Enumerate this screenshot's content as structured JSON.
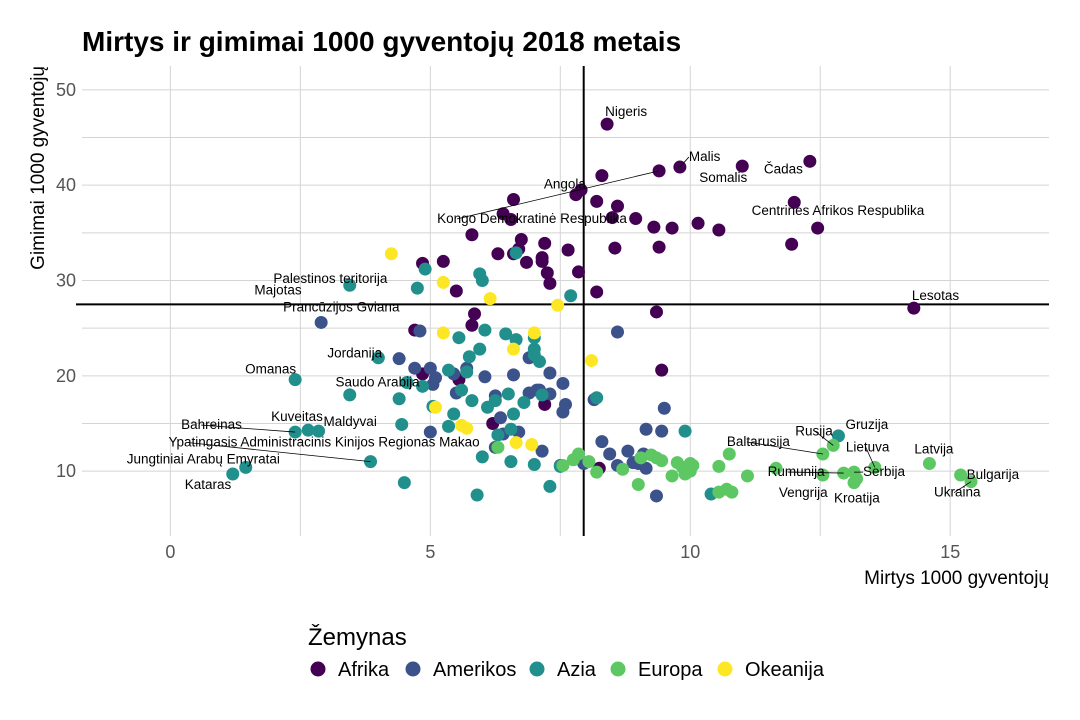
{
  "chart_data": {
    "type": "scatter",
    "title": "Mirtys ir gimimai 1000 gyventojų 2018 metais",
    "xlabel": "Mirtys 1000 gyventojų",
    "ylabel": "Gimimai 1000 gyventojų",
    "xlim": [
      -1.7,
      16.9
    ],
    "ylim": [
      3.2,
      52.5
    ],
    "xticks": [
      0,
      5,
      10,
      15
    ],
    "yticks": [
      10,
      20,
      30,
      40,
      50
    ],
    "grid": true,
    "vline_x": 7.95,
    "hline_y": 27.5,
    "legend": {
      "title": "Žemynas",
      "position": "bottom"
    },
    "colors": {
      "Afrika": "#440154",
      "Amerikos": "#3b528b",
      "Azia": "#21908c",
      "Europa": "#5dc863",
      "Okeanija": "#fde725"
    },
    "series": [
      {
        "name": "Afrika",
        "points": [
          [
            8.4,
            46.4
          ],
          [
            8.3,
            41
          ],
          [
            11,
            42
          ],
          [
            12.3,
            42.5
          ],
          [
            9.8,
            41.9
          ],
          [
            9.4,
            41.5
          ],
          [
            7.9,
            39.5
          ],
          [
            7.8,
            39
          ],
          [
            8.2,
            38.3
          ],
          [
            8.6,
            37.8
          ],
          [
            12,
            38.2
          ],
          [
            6.6,
            38.5
          ],
          [
            6.4,
            37
          ],
          [
            6.55,
            36.4
          ],
          [
            8.5,
            36.6
          ],
          [
            8.95,
            36.5
          ],
          [
            9.3,
            35.6
          ],
          [
            9.65,
            35.5
          ],
          [
            10.15,
            36
          ],
          [
            10.55,
            35.3
          ],
          [
            12.45,
            35.5
          ],
          [
            5.8,
            34.8
          ],
          [
            6.75,
            34.3
          ],
          [
            7.2,
            33.9
          ],
          [
            11.95,
            33.8
          ],
          [
            9.4,
            33.5
          ],
          [
            8.55,
            33.4
          ],
          [
            7.65,
            33.2
          ],
          [
            6.7,
            33.3
          ],
          [
            6.6,
            32.8
          ],
          [
            7.15,
            32.4
          ],
          [
            6.3,
            32.8
          ],
          [
            4.85,
            31.8
          ],
          [
            5.25,
            32
          ],
          [
            6.85,
            31.9
          ],
          [
            7.15,
            32
          ],
          [
            7.25,
            30.8
          ],
          [
            7.85,
            30.9
          ],
          [
            7.3,
            29.7
          ],
          [
            8.2,
            28.8
          ],
          [
            5.5,
            28.9
          ],
          [
            14.3,
            27.1
          ],
          [
            9.35,
            26.7
          ],
          [
            5.85,
            26.5
          ],
          [
            5.8,
            25.3
          ],
          [
            4.7,
            24.8
          ],
          [
            9.45,
            20.6
          ],
          [
            4.85,
            20.2
          ],
          [
            5.55,
            19.6
          ],
          [
            7.2,
            17
          ],
          [
            6.2,
            15
          ],
          [
            8.25,
            10.3
          ]
        ]
      },
      {
        "name": "Amerikos",
        "points": [
          [
            2.9,
            25.6
          ],
          [
            4.8,
            24.7
          ],
          [
            8.6,
            24.6
          ],
          [
            5.7,
            20.8
          ],
          [
            5.45,
            20.2
          ],
          [
            4.4,
            21.8
          ],
          [
            4.7,
            20.8
          ],
          [
            5,
            20.8
          ],
          [
            5.1,
            19.8
          ],
          [
            6.05,
            19.9
          ],
          [
            6.6,
            20.1
          ],
          [
            6.9,
            21.9
          ],
          [
            7.3,
            20.3
          ],
          [
            7.55,
            19.2
          ],
          [
            7.1,
            18.5
          ],
          [
            6.9,
            18.2
          ],
          [
            7.05,
            18.5
          ],
          [
            7.3,
            18.1
          ],
          [
            5.5,
            18.2
          ],
          [
            5.05,
            19.1
          ],
          [
            6.25,
            17.9
          ],
          [
            7.6,
            17
          ],
          [
            6.35,
            15.6
          ],
          [
            7.55,
            16.2
          ],
          [
            8.15,
            17.5
          ],
          [
            9.5,
            16.6
          ],
          [
            9.15,
            14.4
          ],
          [
            9.45,
            14.2
          ],
          [
            6.4,
            13.9
          ],
          [
            6.7,
            14.1
          ],
          [
            5.0,
            14.1
          ],
          [
            8.3,
            13.1
          ],
          [
            8.45,
            11.8
          ],
          [
            8.8,
            12.1
          ],
          [
            9.1,
            11.8
          ],
          [
            8.9,
            10.9
          ],
          [
            9.0,
            10.8
          ],
          [
            9.15,
            10.3
          ],
          [
            8.6,
            10.6
          ],
          [
            7.95,
            10.8
          ],
          [
            7.5,
            10.6
          ],
          [
            6.25,
            12.5
          ],
          [
            7.15,
            12.1
          ],
          [
            9.35,
            7.4
          ]
        ]
      },
      {
        "name": "Azia",
        "points": [
          [
            4.9,
            31.2
          ],
          [
            3.45,
            29.5
          ],
          [
            4.75,
            29.2
          ],
          [
            5.95,
            30.7
          ],
          [
            6.0,
            30.0
          ],
          [
            7.7,
            28.4
          ],
          [
            6.65,
            32.9
          ],
          [
            5.55,
            24.0
          ],
          [
            5.95,
            22.8
          ],
          [
            6.05,
            24.8
          ],
          [
            6.45,
            24.4
          ],
          [
            6.65,
            23.8
          ],
          [
            7.0,
            24.0
          ],
          [
            7.0,
            22.8
          ],
          [
            7.0,
            22.2
          ],
          [
            7.1,
            21.5
          ],
          [
            5.75,
            22.0
          ],
          [
            5.35,
            20.6
          ],
          [
            5.7,
            20.4
          ],
          [
            4.0,
            21.9
          ],
          [
            2.4,
            19.6
          ],
          [
            3.45,
            18.0
          ],
          [
            4.55,
            19.3
          ],
          [
            4.85,
            18.9
          ],
          [
            4.4,
            17.6
          ],
          [
            5.6,
            18.5
          ],
          [
            5.8,
            17.4
          ],
          [
            6.25,
            17.4
          ],
          [
            6.5,
            18.1
          ],
          [
            6.8,
            17.2
          ],
          [
            7.15,
            18.0
          ],
          [
            8.2,
            17.7
          ],
          [
            5.05,
            16.8
          ],
          [
            5.45,
            16.0
          ],
          [
            6.1,
            16.7
          ],
          [
            6.6,
            16.0
          ],
          [
            4.45,
            14.9
          ],
          [
            5.35,
            14.7
          ],
          [
            6.55,
            14.4
          ],
          [
            6.3,
            13.8
          ],
          [
            2.4,
            14.1
          ],
          [
            2.65,
            14.3
          ],
          [
            2.85,
            14.2
          ],
          [
            3.85,
            11.0
          ],
          [
            1.45,
            10.4
          ],
          [
            1.2,
            9.7
          ],
          [
            4.5,
            8.8
          ],
          [
            5.9,
            7.5
          ],
          [
            7.3,
            8.4
          ],
          [
            6.55,
            11.0
          ],
          [
            7.0,
            10.7
          ],
          [
            7.5,
            10.5
          ],
          [
            9.9,
            14.2
          ],
          [
            10.4,
            7.6
          ],
          [
            12.85,
            13.7
          ],
          [
            6.0,
            11.5
          ]
        ]
      },
      {
        "name": "Europa",
        "points": [
          [
            14.6,
            10.8
          ],
          [
            15.2,
            9.6
          ],
          [
            15.4,
            8.9
          ],
          [
            13.55,
            10.4
          ],
          [
            13.15,
            9.9
          ],
          [
            12.95,
            9.8
          ],
          [
            13.2,
            9.2
          ],
          [
            13.15,
            8.8
          ],
          [
            12.75,
            12.7
          ],
          [
            12.55,
            11.8
          ],
          [
            10.75,
            11.8
          ],
          [
            11.65,
            10.3
          ],
          [
            11.1,
            9.5
          ],
          [
            10.55,
            10.5
          ],
          [
            10.7,
            8.1
          ],
          [
            10.8,
            7.8
          ],
          [
            10.55,
            7.8
          ],
          [
            9.75,
            10.9
          ],
          [
            9.85,
            10.4
          ],
          [
            10.0,
            10.8
          ],
          [
            9.65,
            9.5
          ],
          [
            9.9,
            9.7
          ],
          [
            10.0,
            10.0
          ],
          [
            10.05,
            10.6
          ],
          [
            9.45,
            11.1
          ],
          [
            9.25,
            11.7
          ],
          [
            9.35,
            11.4
          ],
          [
            9.05,
            11.4
          ],
          [
            9.0,
            8.6
          ],
          [
            8.7,
            10.2
          ],
          [
            8.2,
            9.9
          ],
          [
            8.05,
            11.0
          ],
          [
            7.85,
            11.8
          ],
          [
            7.75,
            11.2
          ],
          [
            7.55,
            10.6
          ],
          [
            12.55,
            9.6
          ],
          [
            6.3,
            12.5
          ]
        ]
      },
      {
        "name": "Okeanija",
        "points": [
          [
            4.25,
            32.8
          ],
          [
            5.25,
            29.8
          ],
          [
            6.15,
            28.1
          ],
          [
            7.45,
            27.4
          ],
          [
            5.25,
            24.5
          ],
          [
            7.0,
            24.5
          ],
          [
            6.6,
            22.8
          ],
          [
            8.1,
            21.6
          ],
          [
            5.1,
            16.7
          ],
          [
            5.6,
            14.8
          ],
          [
            5.7,
            14.5
          ],
          [
            6.65,
            13.0
          ],
          [
            6.95,
            12.8
          ]
        ]
      }
    ],
    "labels": [
      {
        "text": "Nigeris",
        "x": 8.4,
        "y": 46.4
      },
      {
        "text": "Malis",
        "x": 9.8,
        "y": 41.9
      },
      {
        "text": "Angola",
        "x": 7.8,
        "y": 39.0
      },
      {
        "text": "Somalis",
        "x": 11.0,
        "y": 42.0
      },
      {
        "text": "Čadas",
        "x": 12.3,
        "y": 42.5
      },
      {
        "text": "Kongo Demokratinė Respublika",
        "x": 9.4,
        "y": 41.5
      },
      {
        "text": "Centrinės Afrikos Respublika",
        "x": 12.45,
        "y": 35.5
      },
      {
        "text": "Palestinos teritorija",
        "x": 4.75,
        "y": 29.2
      },
      {
        "text": "Majotas",
        "x": 2.75,
        "y": 28.3
      },
      {
        "text": "Lesotas",
        "x": 14.3,
        "y": 27.1
      },
      {
        "text": "Prancūzijos Gviana",
        "x": 2.9,
        "y": 25.6
      },
      {
        "text": "Jordanija",
        "x": 4.0,
        "y": 21.9
      },
      {
        "text": "Omanas",
        "x": 2.4,
        "y": 19.6
      },
      {
        "text": "Saudo Arabija",
        "x": 4.85,
        "y": 18.9
      },
      {
        "text": "Kuveitas",
        "x": 2.65,
        "y": 14.3
      },
      {
        "text": "Maldyvai",
        "x": 2.85,
        "y": 14.2
      },
      {
        "text": "Bahreinas",
        "x": 2.4,
        "y": 14.1
      },
      {
        "text": "Ypatingasis Administracinis Kinijos Regionas Makao",
        "x": 3.85,
        "y": 11.0
      },
      {
        "text": "Jungtiniai Arabų Emyratai",
        "x": 1.45,
        "y": 10.4
      },
      {
        "text": "Kataras",
        "x": 1.2,
        "y": 9.7
      },
      {
        "text": "Rusija",
        "x": 12.75,
        "y": 12.7
      },
      {
        "text": "Gruzija",
        "x": 12.85,
        "y": 13.7
      },
      {
        "text": "Baltarusija",
        "x": 12.55,
        "y": 11.8
      },
      {
        "text": "Lietuva",
        "x": 13.55,
        "y": 10.4
      },
      {
        "text": "Latvija",
        "x": 14.6,
        "y": 10.8
      },
      {
        "text": "Bulgarija",
        "x": 15.2,
        "y": 9.6
      },
      {
        "text": "Rumunija",
        "x": 12.95,
        "y": 9.8
      },
      {
        "text": "Serbija",
        "x": 13.15,
        "y": 9.9
      },
      {
        "text": "Vengrija",
        "x": 12.55,
        "y": 9.6
      },
      {
        "text": "Kroatija",
        "x": 13.15,
        "y": 8.8
      },
      {
        "text": "Ukraina",
        "x": 15.4,
        "y": 8.9
      }
    ]
  }
}
